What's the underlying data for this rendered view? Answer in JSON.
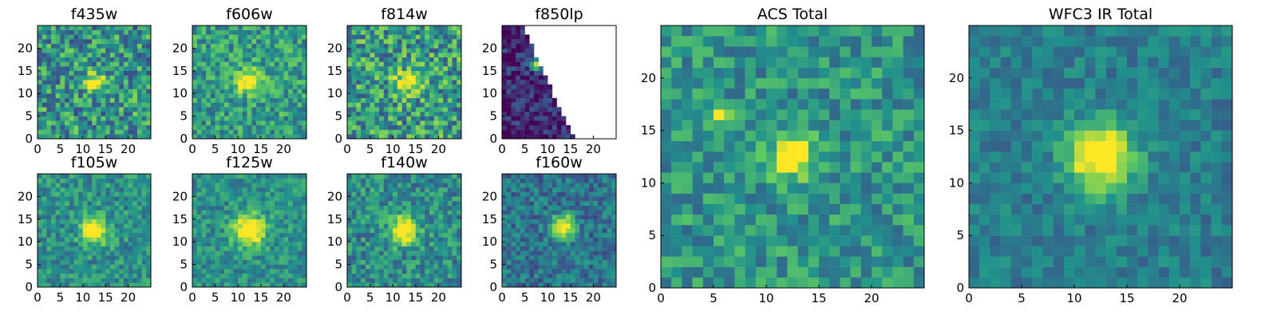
{
  "figure": {
    "name": "hubble-cutout-grid"
  },
  "chart_data": [
    {
      "type": "heatmap",
      "title": "f435w",
      "xlabel": "",
      "ylabel": "",
      "grid": false,
      "xlim": [
        0,
        25
      ],
      "ylim": [
        0,
        25
      ],
      "grid_size": 25,
      "xticks": [
        "0",
        "5",
        "10",
        "15",
        "20"
      ],
      "yticks": [
        "0",
        "5",
        "10",
        "15",
        "20"
      ],
      "colormap": [
        "#440154",
        "#3b528b",
        "#21918c",
        "#5ec962",
        "#fde725"
      ],
      "source_center": [
        12,
        12
      ],
      "source_sigma": 1.6,
      "source_strength": 0.55,
      "noise_level": 0.58,
      "base_level": 0.52,
      "missing_region": "none",
      "seed": 11
    },
    {
      "type": "heatmap",
      "title": "f606w",
      "xlabel": "",
      "ylabel": "",
      "grid": false,
      "xlim": [
        0,
        25
      ],
      "ylim": [
        0,
        25
      ],
      "grid_size": 25,
      "xticks": [
        "0",
        "5",
        "10",
        "15",
        "20"
      ],
      "yticks": [
        "0",
        "5",
        "10",
        "15",
        "20"
      ],
      "colormap": [
        "#440154",
        "#3b528b",
        "#21918c",
        "#5ec962",
        "#fde725"
      ],
      "source_center": [
        12,
        12
      ],
      "source_sigma": 1.8,
      "source_strength": 0.65,
      "noise_level": 0.45,
      "base_level": 0.55,
      "missing_region": "none",
      "seed": 17
    },
    {
      "type": "heatmap",
      "title": "f814w",
      "xlabel": "",
      "ylabel": "",
      "grid": false,
      "xlim": [
        0,
        25
      ],
      "ylim": [
        0,
        25
      ],
      "grid_size": 25,
      "xticks": [
        "0",
        "5",
        "10",
        "15",
        "20"
      ],
      "yticks": [
        "0",
        "5",
        "10",
        "15",
        "20"
      ],
      "colormap": [
        "#440154",
        "#3b528b",
        "#21918c",
        "#5ec962",
        "#fde725"
      ],
      "source_center": [
        13,
        12
      ],
      "source_sigma": 1.8,
      "source_strength": 0.6,
      "noise_level": 0.6,
      "base_level": 0.55,
      "missing_region": "none",
      "seed": 23
    },
    {
      "type": "heatmap",
      "title": "f850lp",
      "xlabel": "",
      "ylabel": "",
      "grid": false,
      "xlim": [
        0,
        25
      ],
      "ylim": [
        0,
        25
      ],
      "grid_size": 25,
      "xticks": [
        "0",
        "5",
        "10",
        "15",
        "20"
      ],
      "yticks": [
        "0",
        "5",
        "10",
        "15",
        "20"
      ],
      "colormap": [
        "#440154",
        "#3b528b",
        "#21918c",
        "#5ec962",
        "#fde725"
      ],
      "source_center": [
        7,
        16
      ],
      "source_sigma": 0.9,
      "source_strength": 0.9,
      "noise_level": 0.35,
      "base_level": 0.12,
      "missing_region": "diagonal-right",
      "seed": 29
    },
    {
      "type": "heatmap",
      "title": "f105w",
      "xlabel": "",
      "ylabel": "",
      "grid": false,
      "xlim": [
        0,
        25
      ],
      "ylim": [
        0,
        25
      ],
      "grid_size": 25,
      "xticks": [
        "0",
        "5",
        "10",
        "15",
        "20"
      ],
      "yticks": [
        "0",
        "5",
        "10",
        "15",
        "20"
      ],
      "colormap": [
        "#440154",
        "#3b528b",
        "#21918c",
        "#5ec962",
        "#fde725"
      ],
      "source_center": [
        12,
        12
      ],
      "source_sigma": 2.0,
      "source_strength": 0.7,
      "noise_level": 0.35,
      "base_level": 0.5,
      "missing_region": "none",
      "seed": 31
    },
    {
      "type": "heatmap",
      "title": "f125w",
      "xlabel": "",
      "ylabel": "",
      "grid": false,
      "xlim": [
        0,
        25
      ],
      "ylim": [
        0,
        25
      ],
      "grid_size": 25,
      "xticks": [
        "0",
        "5",
        "10",
        "15",
        "20"
      ],
      "yticks": [
        "0",
        "5",
        "10",
        "15",
        "20"
      ],
      "colormap": [
        "#440154",
        "#3b528b",
        "#21918c",
        "#5ec962",
        "#fde725"
      ],
      "source_center": [
        12,
        12
      ],
      "source_sigma": 2.4,
      "source_strength": 0.7,
      "noise_level": 0.32,
      "base_level": 0.5,
      "missing_region": "none",
      "seed": 37
    },
    {
      "type": "heatmap",
      "title": "f140w",
      "xlabel": "",
      "ylabel": "",
      "grid": false,
      "xlim": [
        0,
        25
      ],
      "ylim": [
        0,
        25
      ],
      "grid_size": 25,
      "xticks": [
        "0",
        "5",
        "10",
        "15",
        "20"
      ],
      "yticks": [
        "0",
        "5",
        "10",
        "15",
        "20"
      ],
      "colormap": [
        "#440154",
        "#3b528b",
        "#21918c",
        "#5ec962",
        "#fde725"
      ],
      "source_center": [
        12,
        12
      ],
      "source_sigma": 2.1,
      "source_strength": 0.72,
      "noise_level": 0.4,
      "base_level": 0.48,
      "missing_region": "none",
      "seed": 41
    },
    {
      "type": "heatmap",
      "title": "f160w",
      "xlabel": "",
      "ylabel": "",
      "grid": false,
      "xlim": [
        0,
        25
      ],
      "ylim": [
        0,
        25
      ],
      "grid_size": 25,
      "xticks": [
        "0",
        "5",
        "10",
        "15",
        "20"
      ],
      "yticks": [
        "0",
        "5",
        "10",
        "15",
        "20"
      ],
      "colormap": [
        "#440154",
        "#3b528b",
        "#21918c",
        "#5ec962",
        "#fde725"
      ],
      "source_center": [
        13,
        13
      ],
      "source_sigma": 1.7,
      "source_strength": 0.78,
      "noise_level": 0.34,
      "base_level": 0.38,
      "missing_region": "none",
      "seed": 43
    },
    {
      "type": "heatmap",
      "title": "ACS Total",
      "xlabel": "",
      "ylabel": "",
      "grid": false,
      "xlim": [
        0,
        25
      ],
      "ylim": [
        0,
        25
      ],
      "grid_size": 25,
      "xticks": [
        "0",
        "5",
        "10",
        "15",
        "20"
      ],
      "yticks": [
        "0",
        "5",
        "10",
        "15",
        "20"
      ],
      "colormap": [
        "#440154",
        "#3b528b",
        "#21918c",
        "#5ec962",
        "#fde725"
      ],
      "source_center": [
        12,
        12
      ],
      "source_sigma": 1.3,
      "source_strength": 0.72,
      "noise_level": 0.38,
      "base_level": 0.52,
      "missing_region": "none",
      "secondary_source": [
        5,
        16
      ],
      "secondary_strength": 0.7,
      "seed": 53
    },
    {
      "type": "heatmap",
      "title": "WFC3 IR Total",
      "xlabel": "",
      "ylabel": "",
      "grid": false,
      "xlim": [
        0,
        25
      ],
      "ylim": [
        0,
        25
      ],
      "grid_size": 25,
      "xticks": [
        "0",
        "5",
        "10",
        "15",
        "20"
      ],
      "yticks": [
        "0",
        "5",
        "10",
        "15",
        "20"
      ],
      "colormap": [
        "#440154",
        "#3b528b",
        "#21918c",
        "#5ec962",
        "#fde725"
      ],
      "source_center": [
        12,
        12
      ],
      "source_sigma": 2.2,
      "source_strength": 0.75,
      "noise_level": 0.24,
      "base_level": 0.42,
      "missing_region": "none",
      "seed": 61
    }
  ]
}
